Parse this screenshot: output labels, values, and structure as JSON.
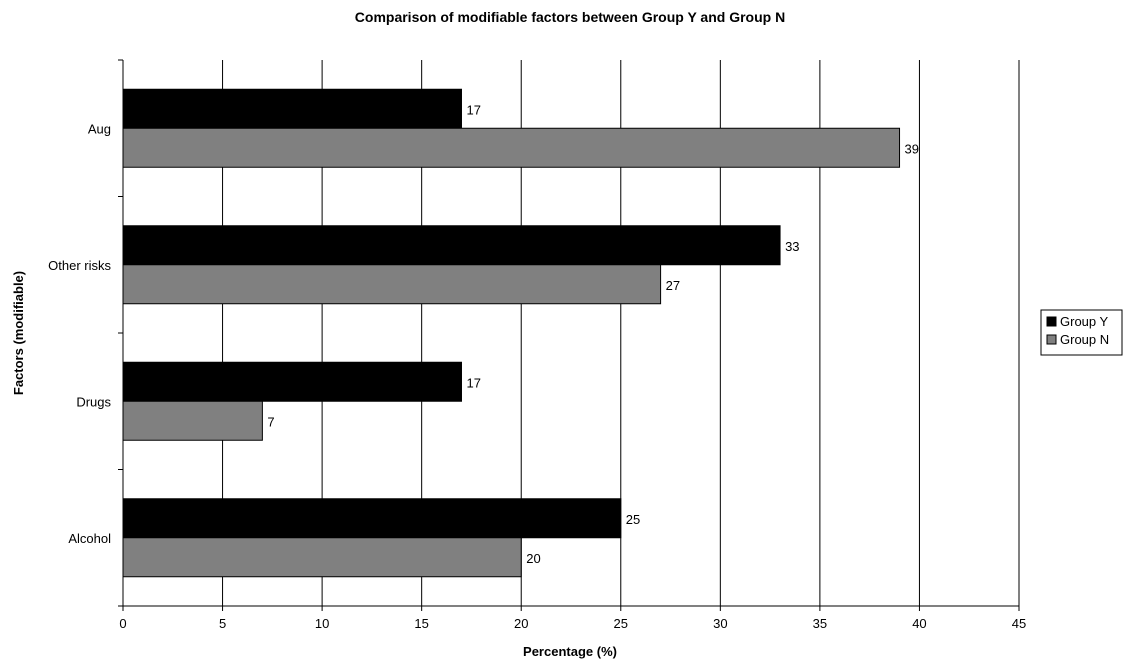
{
  "chart_data": {
    "type": "bar",
    "orientation": "horizontal",
    "title": "Comparison of modifiable factors between Group Y and Group N",
    "xlabel": "Percentage (%)",
    "ylabel": "Factors (modifiable)",
    "categories": [
      "Aug",
      "Other risks",
      "Drugs",
      "Alcohol"
    ],
    "series": [
      {
        "name": "Group Y",
        "color": "#000000",
        "values": [
          17,
          33,
          17,
          25
        ]
      },
      {
        "name": "Group N",
        "color": "#808080",
        "values": [
          39,
          27,
          7,
          20
        ]
      }
    ],
    "xlim": [
      0,
      45
    ],
    "xticks": [
      0,
      5,
      10,
      15,
      20,
      25,
      30,
      35,
      40,
      45
    ],
    "grid": "vertical",
    "data_labels": true,
    "legend": {
      "position": "right",
      "entries": [
        "Group Y",
        "Group N"
      ]
    }
  }
}
